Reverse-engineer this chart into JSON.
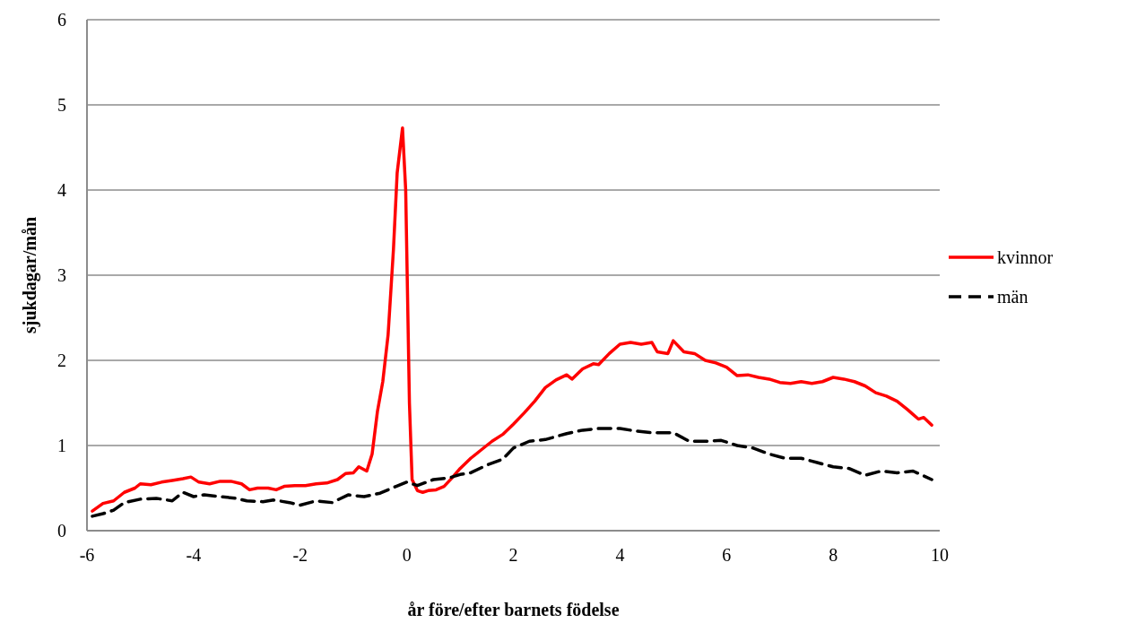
{
  "chart_data": {
    "type": "line",
    "xlabel": "år före/efter barnets födelse",
    "ylabel": "sjukdagar/mån",
    "xlim": [
      -6,
      10
    ],
    "xticks": [
      -6,
      -4,
      -2,
      0,
      2,
      4,
      6,
      8,
      10
    ],
    "ylim": [
      0,
      6
    ],
    "yticks": [
      0,
      1,
      2,
      3,
      4,
      5,
      6
    ],
    "grid": "y",
    "legend": "right",
    "series": [
      {
        "name": "kvinnor",
        "color": "#ff0000",
        "line_style": "solid",
        "x": [
          -5.9,
          -5.7,
          -5.5,
          -5.3,
          -5.1,
          -5.0,
          -4.8,
          -4.6,
          -4.4,
          -4.2,
          -4.05,
          -3.9,
          -3.7,
          -3.5,
          -3.3,
          -3.1,
          -2.95,
          -2.8,
          -2.6,
          -2.45,
          -2.3,
          -2.1,
          -1.9,
          -1.7,
          -1.5,
          -1.3,
          -1.15,
          -1.0,
          -0.9,
          -0.75,
          -0.65,
          -0.55,
          -0.45,
          -0.35,
          -0.25,
          -0.18,
          -0.08,
          -0.02,
          0.05,
          0.1,
          0.2,
          0.3,
          0.4,
          0.55,
          0.7,
          0.85,
          1.0,
          1.2,
          1.4,
          1.6,
          1.8,
          2.0,
          2.2,
          2.4,
          2.6,
          2.8,
          3.0,
          3.1,
          3.3,
          3.5,
          3.6,
          3.8,
          4.0,
          4.2,
          4.4,
          4.6,
          4.7,
          4.9,
          5.0,
          5.2,
          5.4,
          5.6,
          5.8,
          6.0,
          6.2,
          6.4,
          6.6,
          6.8,
          7.0,
          7.2,
          7.4,
          7.6,
          7.8,
          8.0,
          8.2,
          8.4,
          8.6,
          8.8,
          9.0,
          9.2,
          9.4,
          9.6,
          9.7,
          9.85
        ],
        "values": [
          0.23,
          0.32,
          0.35,
          0.45,
          0.5,
          0.55,
          0.54,
          0.57,
          0.59,
          0.61,
          0.63,
          0.57,
          0.55,
          0.58,
          0.58,
          0.55,
          0.48,
          0.5,
          0.5,
          0.48,
          0.52,
          0.53,
          0.53,
          0.55,
          0.56,
          0.6,
          0.67,
          0.68,
          0.75,
          0.7,
          0.9,
          1.4,
          1.75,
          2.3,
          3.3,
          4.2,
          4.73,
          4.0,
          1.5,
          0.6,
          0.47,
          0.45,
          0.47,
          0.48,
          0.52,
          0.62,
          0.73,
          0.85,
          0.95,
          1.05,
          1.13,
          1.25,
          1.38,
          1.52,
          1.68,
          1.77,
          1.83,
          1.78,
          1.9,
          1.96,
          1.95,
          2.08,
          2.19,
          2.21,
          2.19,
          2.21,
          2.1,
          2.08,
          2.23,
          2.1,
          2.08,
          2.0,
          1.97,
          1.92,
          1.82,
          1.83,
          1.8,
          1.78,
          1.74,
          1.73,
          1.75,
          1.73,
          1.75,
          1.8,
          1.78,
          1.75,
          1.7,
          1.62,
          1.58,
          1.52,
          1.42,
          1.31,
          1.33,
          1.24
        ]
      },
      {
        "name": "män",
        "color": "#000000",
        "line_style": "dashed",
        "x": [
          -5.9,
          -5.7,
          -5.5,
          -5.3,
          -5.0,
          -4.7,
          -4.4,
          -4.2,
          -4.0,
          -3.8,
          -3.5,
          -3.2,
          -3.0,
          -2.7,
          -2.5,
          -2.2,
          -2.0,
          -1.7,
          -1.4,
          -1.1,
          -0.8,
          -0.5,
          -0.2,
          0.0,
          0.2,
          0.5,
          0.8,
          1.0,
          1.2,
          1.5,
          1.8,
          2.0,
          2.3,
          2.6,
          3.0,
          3.3,
          3.6,
          4.0,
          4.3,
          4.6,
          5.0,
          5.3,
          5.6,
          5.9,
          6.2,
          6.5,
          6.8,
          7.1,
          7.4,
          7.7,
          8.0,
          8.3,
          8.6,
          8.9,
          9.2,
          9.5,
          9.85
        ],
        "values": [
          0.17,
          0.2,
          0.24,
          0.33,
          0.37,
          0.38,
          0.35,
          0.45,
          0.4,
          0.42,
          0.4,
          0.38,
          0.35,
          0.34,
          0.36,
          0.33,
          0.3,
          0.35,
          0.33,
          0.42,
          0.4,
          0.44,
          0.52,
          0.57,
          0.53,
          0.6,
          0.62,
          0.66,
          0.68,
          0.77,
          0.84,
          0.97,
          1.05,
          1.07,
          1.14,
          1.18,
          1.2,
          1.2,
          1.17,
          1.15,
          1.15,
          1.05,
          1.05,
          1.06,
          1.0,
          0.97,
          0.9,
          0.85,
          0.85,
          0.8,
          0.75,
          0.73,
          0.65,
          0.7,
          0.68,
          0.7,
          0.6
        ]
      }
    ]
  }
}
